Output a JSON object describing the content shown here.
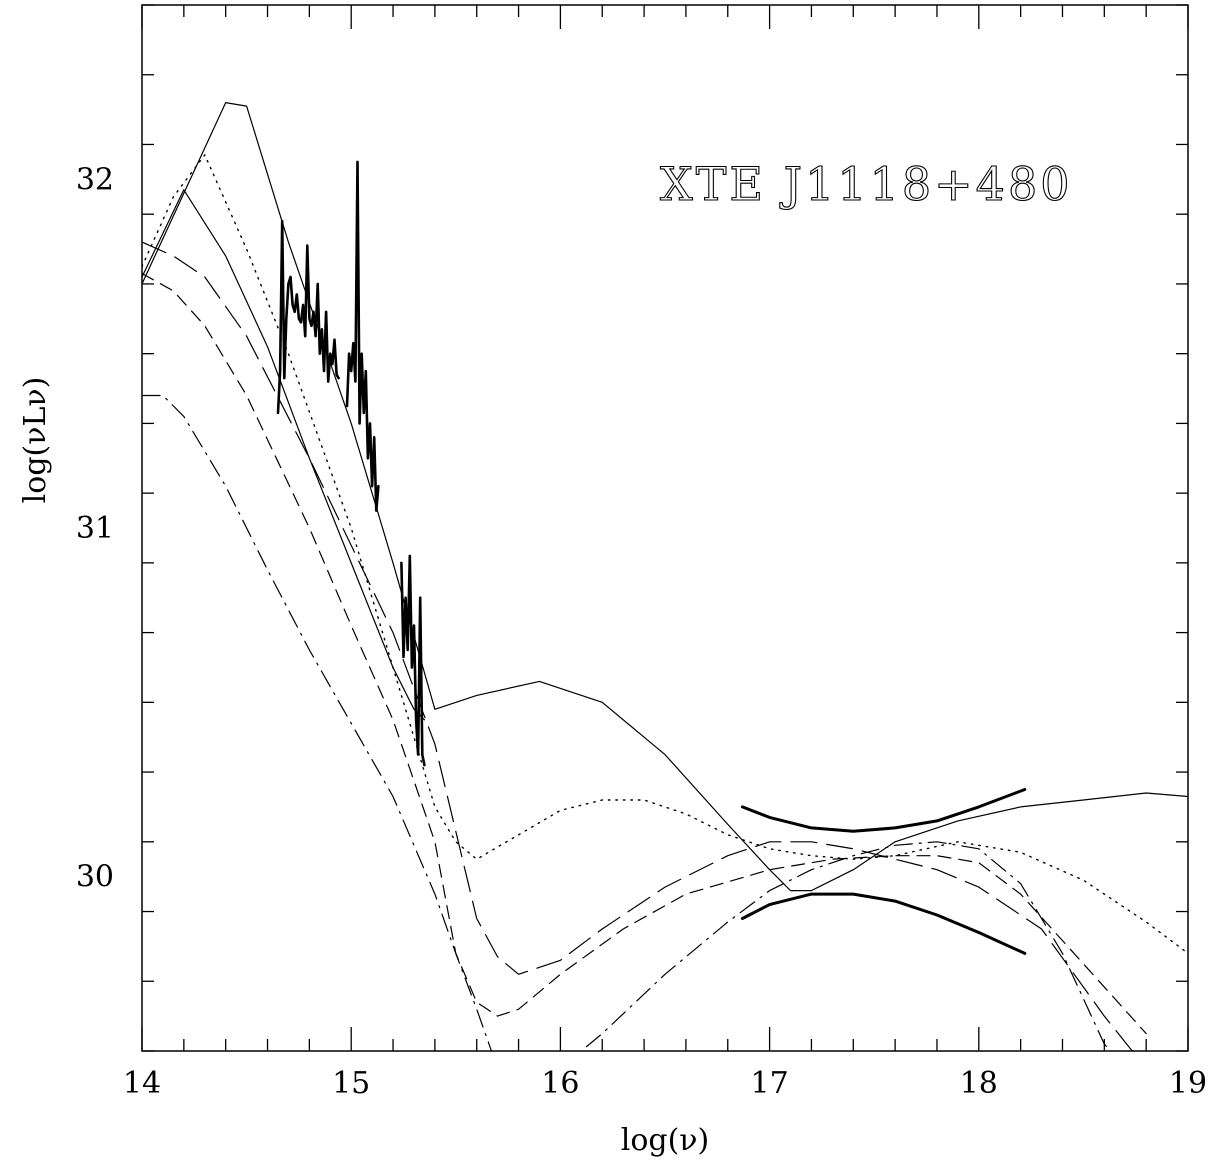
{
  "chart_data": {
    "type": "line",
    "title": "",
    "annotation": "XTE J1118+480",
    "xlabel": "log(ν)",
    "ylabel": "log(νLν)",
    "xlim": [
      14,
      19
    ],
    "ylim": [
      29.5,
      32.5
    ],
    "x_ticks": [
      14,
      15,
      16,
      17,
      18,
      19
    ],
    "y_ticks": [
      30,
      31,
      32
    ],
    "x_minor_step": 0.2,
    "y_minor_step": 0.2,
    "grid": false,
    "legend": "none",
    "series": [
      {
        "style": "solid-thin",
        "x": [
          14.0,
          14.4,
          14.5,
          14.7,
          15.0,
          15.2,
          15.4,
          15.6,
          15.9,
          16.2,
          16.5,
          16.8,
          17.0,
          17.1,
          17.2,
          17.4,
          17.6,
          17.9,
          18.2,
          18.5,
          18.8,
          19.0
        ],
        "y": [
          31.7,
          32.22,
          32.21,
          31.82,
          31.3,
          30.9,
          30.48,
          30.52,
          30.56,
          30.5,
          30.35,
          30.15,
          30.02,
          29.96,
          29.96,
          30.02,
          30.1,
          30.16,
          30.2,
          30.22,
          30.24,
          30.23
        ]
      },
      {
        "style": "solid-thin",
        "x": [
          14.0,
          14.2,
          14.4,
          14.6,
          14.8,
          15.0,
          15.2,
          15.3,
          15.35
        ],
        "y": [
          31.72,
          31.97,
          31.78,
          31.52,
          31.2,
          30.9,
          30.6,
          30.48,
          30.45
        ]
      },
      {
        "style": "dotted",
        "x": [
          14.0,
          14.15,
          14.3,
          14.5,
          14.7,
          15.0,
          15.2,
          15.4,
          15.5,
          15.6,
          15.8,
          16.0,
          16.2,
          16.4,
          16.6,
          16.8,
          17.0,
          17.2,
          17.4,
          17.6,
          17.9,
          18.2,
          18.5,
          18.8,
          19.0
        ],
        "y": [
          31.75,
          31.95,
          32.07,
          31.8,
          31.5,
          31.0,
          30.6,
          30.2,
          30.1,
          30.05,
          30.12,
          30.19,
          30.22,
          30.22,
          30.18,
          30.12,
          30.08,
          30.06,
          30.05,
          30.06,
          30.1,
          30.07,
          29.99,
          29.87,
          29.78
        ]
      },
      {
        "style": "long-dash",
        "x": [
          14.0,
          14.15,
          14.3,
          14.5,
          14.8,
          15.0,
          15.2,
          15.4,
          15.6,
          15.7,
          15.8,
          16.0,
          16.2,
          16.5,
          16.8,
          17.0,
          17.2,
          17.4,
          17.6,
          17.8,
          18.0,
          18.3,
          18.6,
          18.8
        ],
        "y": [
          31.82,
          31.78,
          31.72,
          31.55,
          31.2,
          30.95,
          30.7,
          30.38,
          29.88,
          29.77,
          29.72,
          29.76,
          29.85,
          29.97,
          30.06,
          30.1,
          30.1,
          30.08,
          30.05,
          30.02,
          29.97,
          29.85,
          29.6,
          29.45
        ]
      },
      {
        "style": "short-dash",
        "x": [
          14.0,
          14.15,
          14.3,
          14.5,
          14.8,
          15.0,
          15.2,
          15.4,
          15.5,
          15.6,
          15.7,
          15.8,
          16.0,
          16.3,
          16.6,
          17.0,
          17.3,
          17.6,
          17.8,
          18.0,
          18.2,
          18.5,
          18.8
        ],
        "y": [
          31.73,
          31.68,
          31.58,
          31.38,
          31.0,
          30.72,
          30.45,
          30.1,
          29.78,
          29.64,
          29.6,
          29.62,
          29.72,
          29.85,
          29.95,
          30.02,
          30.05,
          30.06,
          30.06,
          30.04,
          29.95,
          29.75,
          29.55
        ]
      },
      {
        "style": "dash-dot",
        "x": [
          14.0,
          14.1,
          14.2,
          14.4,
          14.6,
          14.8,
          15.0,
          15.2,
          15.4,
          15.5,
          15.6,
          15.7
        ],
        "y": [
          31.38,
          31.38,
          31.32,
          31.12,
          30.88,
          30.65,
          30.44,
          30.23,
          29.95,
          29.78,
          29.62,
          29.45
        ]
      },
      {
        "style": "dash-dot",
        "x": [
          16.0,
          16.2,
          16.5,
          16.8,
          17.0,
          17.2,
          17.4,
          17.6,
          17.8,
          18.0,
          18.2,
          18.4,
          18.6,
          18.8
        ],
        "y": [
          29.45,
          29.55,
          29.72,
          29.87,
          29.96,
          30.02,
          30.06,
          30.09,
          30.1,
          30.08,
          29.98,
          29.78,
          29.52,
          29.38
        ]
      },
      {
        "style": "data-thick",
        "x": [
          14.65,
          14.66,
          14.67,
          14.68,
          14.69,
          14.7,
          14.71,
          14.72,
          14.73,
          14.74,
          14.75,
          14.76,
          14.77,
          14.78,
          14.79,
          14.8,
          14.81,
          14.82,
          14.83,
          14.84,
          14.85,
          14.86,
          14.87,
          14.88,
          14.89,
          14.9,
          14.91,
          14.92,
          14.93,
          14.94
        ],
        "y": [
          31.33,
          31.45,
          31.88,
          31.43,
          31.6,
          31.7,
          31.72,
          31.64,
          31.62,
          31.67,
          31.6,
          31.59,
          31.64,
          31.55,
          31.81,
          31.6,
          31.58,
          31.62,
          31.55,
          31.7,
          31.5,
          31.57,
          31.45,
          31.62,
          31.42,
          31.5,
          31.47,
          31.54,
          31.44,
          31.43
        ]
      },
      {
        "style": "data-thick",
        "x": [
          14.98,
          14.99,
          15.0,
          15.01,
          15.02,
          15.03,
          15.04,
          15.05,
          15.06,
          15.07,
          15.08,
          15.09,
          15.1,
          15.11,
          15.12,
          15.13
        ],
        "y": [
          31.35,
          31.5,
          31.45,
          31.53,
          31.42,
          32.05,
          31.3,
          31.5,
          31.33,
          31.45,
          31.2,
          31.3,
          31.12,
          31.26,
          31.05,
          31.12
        ]
      },
      {
        "style": "data-thick",
        "x": [
          15.24,
          15.25,
          15.26,
          15.27,
          15.28,
          15.29,
          15.3,
          15.31,
          15.32,
          15.33,
          15.34,
          15.35
        ],
        "y": [
          30.9,
          30.63,
          30.8,
          30.65,
          30.92,
          30.6,
          30.72,
          30.45,
          30.35,
          30.8,
          30.35,
          30.32
        ]
      },
      {
        "style": "bowtie",
        "x": [
          16.87,
          17.0,
          17.2,
          17.4,
          17.6,
          17.8,
          18.0,
          18.22
        ],
        "y": [
          30.2,
          30.17,
          30.14,
          30.13,
          30.14,
          30.16,
          30.2,
          30.25
        ]
      },
      {
        "style": "bowtie",
        "x": [
          16.87,
          17.0,
          17.2,
          17.4,
          17.6,
          17.8,
          18.0,
          18.22
        ],
        "y": [
          29.88,
          29.92,
          29.95,
          29.95,
          29.93,
          29.89,
          29.84,
          29.78
        ]
      }
    ]
  }
}
